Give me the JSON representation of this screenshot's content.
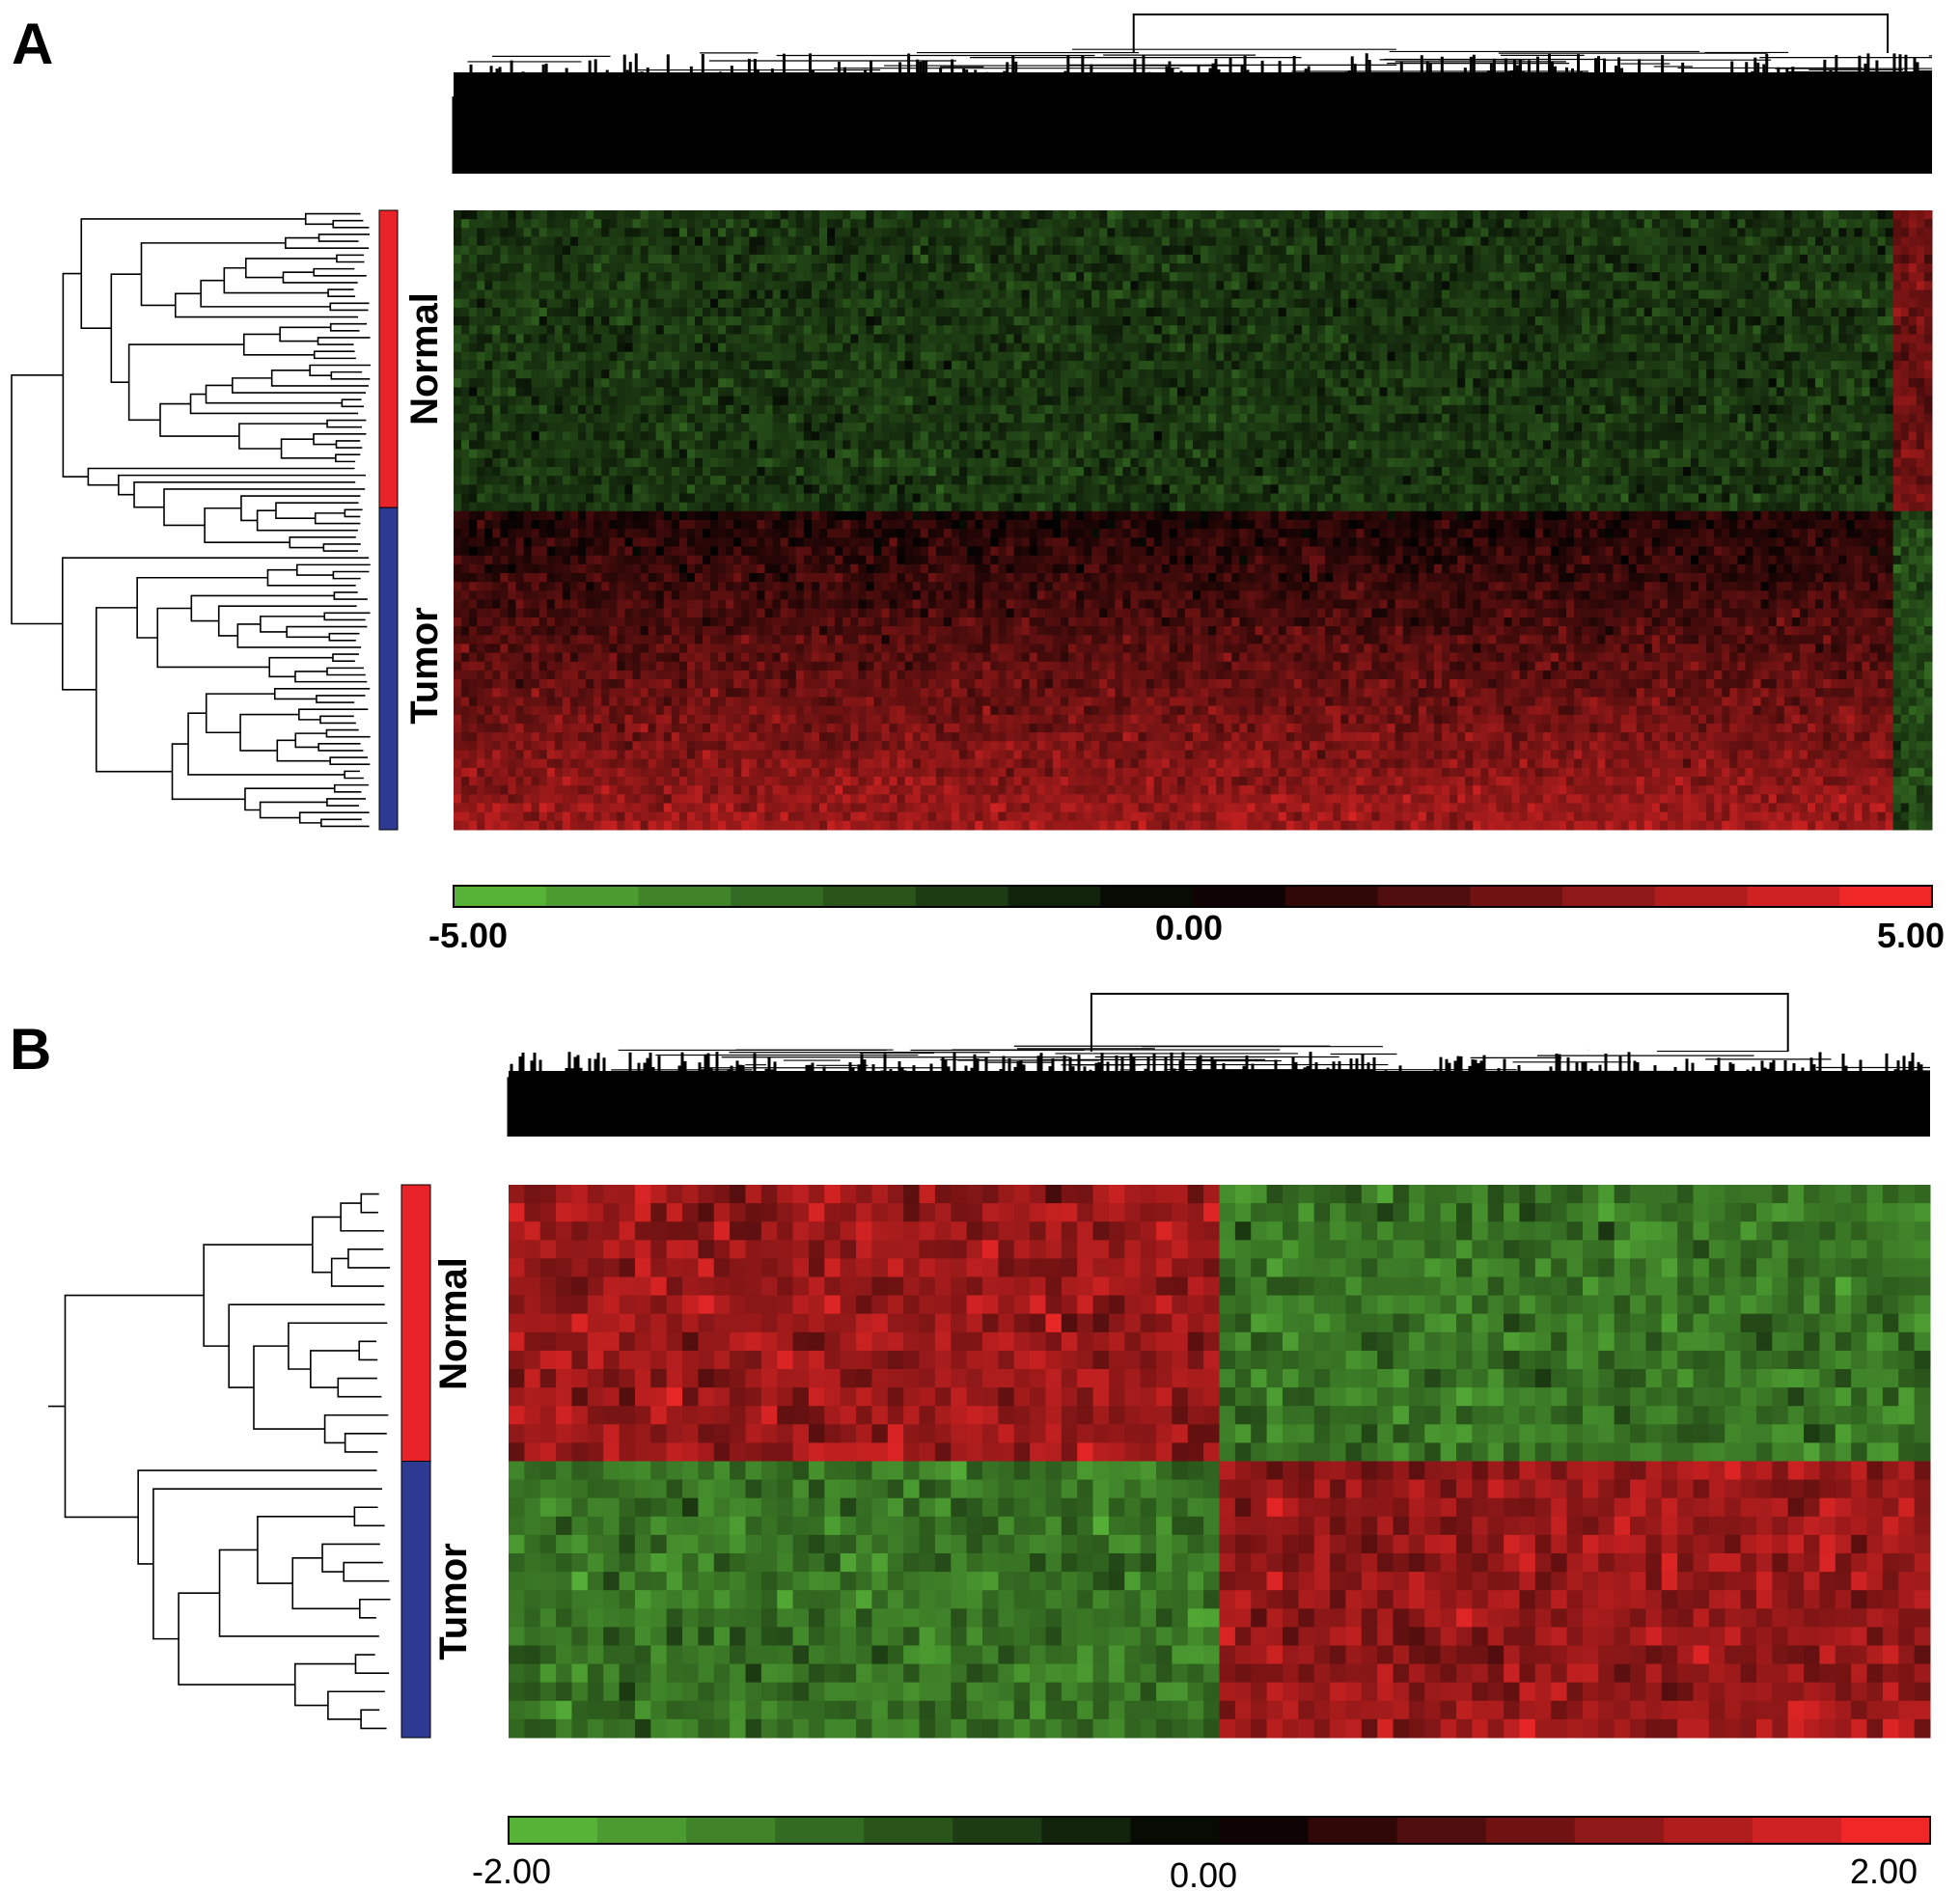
{
  "figure": {
    "panels": [
      {
        "letter": "A",
        "group_labels": [
          "Normal",
          "Tumor"
        ],
        "group_colors": [
          "#e8232a",
          "#2e3a92"
        ],
        "group_fraction": [
          0.48,
          0.52
        ],
        "colorbar": {
          "min_label": "-5.00",
          "mid_label": "0.00",
          "max_label": "5.00",
          "bold": true
        }
      },
      {
        "letter": "B",
        "group_labels": [
          "Normal",
          "Tumor"
        ],
        "group_colors": [
          "#e8232a",
          "#2e3a92"
        ],
        "group_fraction": [
          0.5,
          0.5
        ],
        "colorbar": {
          "min_label": "-2.00",
          "mid_label": "0.00",
          "max_label": "2.00",
          "bold": false
        }
      }
    ]
  },
  "chart_data": [
    {
      "type": "heatmap",
      "panel": "A",
      "rows": "samples (clustered)",
      "row_groups": [
        {
          "name": "Normal",
          "fraction": 0.48,
          "pattern": "mostly green (down), right-most gene cluster red"
        },
        {
          "name": "Tumor",
          "fraction": 0.52,
          "pattern": "mostly red (up), right-most gene cluster green"
        }
      ],
      "color_scale": {
        "min": -5.0,
        "mid": 0.0,
        "max": 5.0,
        "low_color": "#5dbf3c",
        "mid_color": "#000000",
        "high_color": "#ff2a2a"
      },
      "column_dendrogram": true,
      "row_dendrogram": true
    },
    {
      "type": "heatmap",
      "panel": "B",
      "rows": "samples (clustered)",
      "row_groups": [
        {
          "name": "Normal",
          "fraction": 0.5,
          "pattern": "left gene block red, right gene block green"
        },
        {
          "name": "Tumor",
          "fraction": 0.5,
          "pattern": "left gene block green, right gene block red"
        }
      ],
      "column_split_fraction": 0.5,
      "color_scale": {
        "min": -2.0,
        "mid": 0.0,
        "max": 2.0,
        "low_color": "#5dbf3c",
        "mid_color": "#000000",
        "high_color": "#ff2a2a"
      },
      "column_dendrogram": true,
      "row_dendrogram": true
    }
  ]
}
